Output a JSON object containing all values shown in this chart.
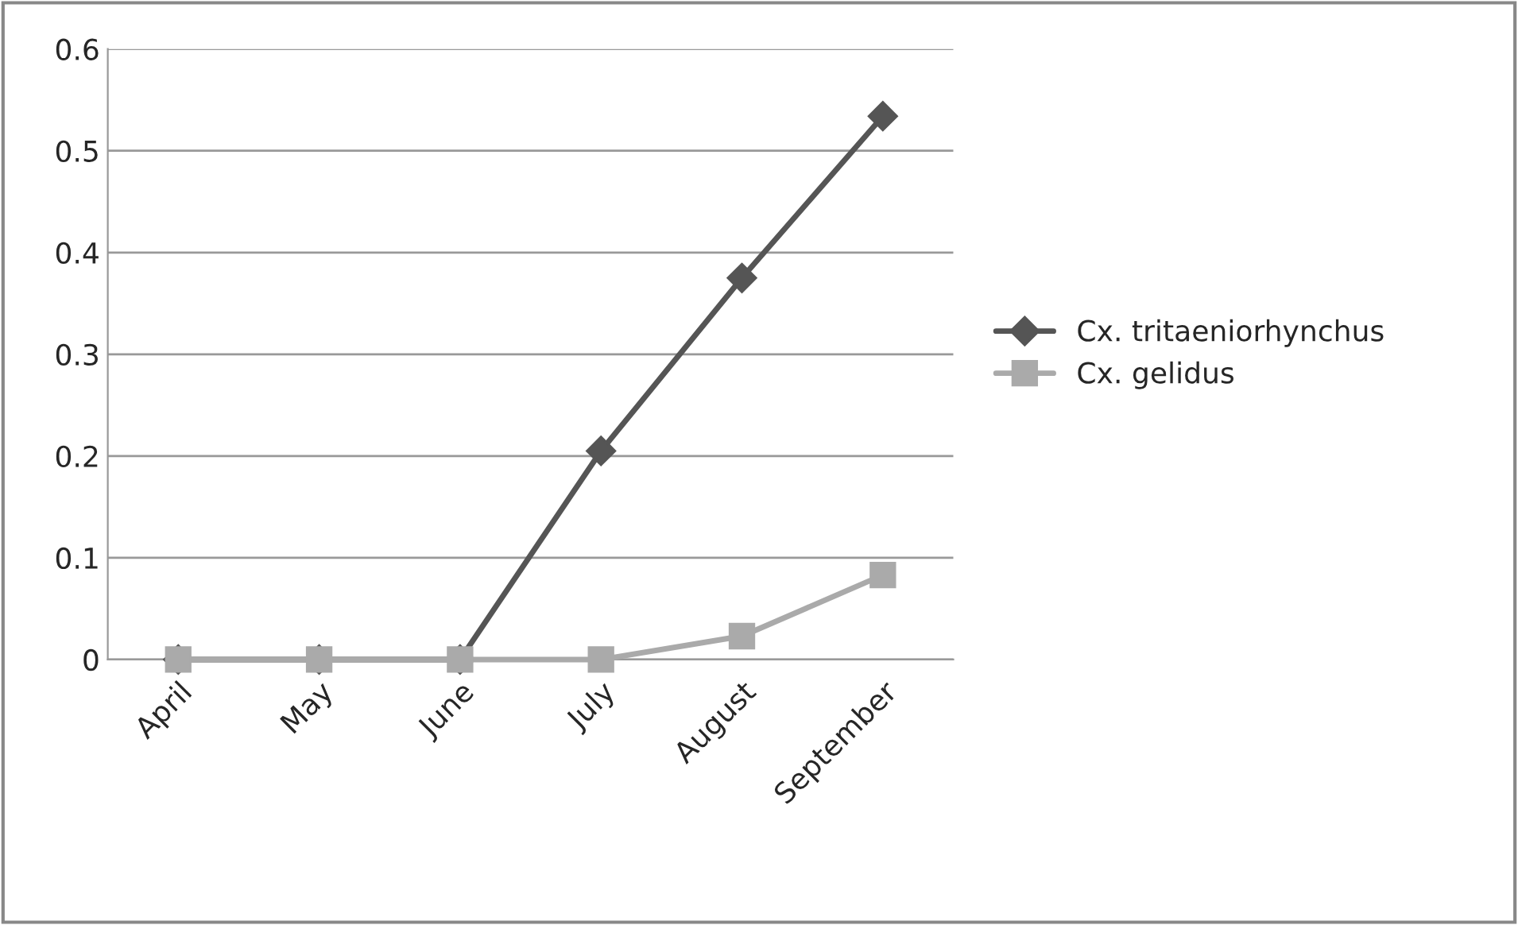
{
  "chart_data": {
    "type": "line",
    "categories": [
      "April",
      "May",
      "June",
      "July",
      "August",
      "September"
    ],
    "series": [
      {
        "name": "Cx. tritaeniorhynchus",
        "color": "#555555",
        "marker": "diamond",
        "values": [
          0,
          0,
          0,
          0.205,
          0.375,
          0.534
        ]
      },
      {
        "name": "Cx. gelidus",
        "color": "#aaaaaa",
        "marker": "square",
        "values": [
          0,
          0,
          0,
          0,
          0.023,
          0.083
        ]
      }
    ],
    "ylim": [
      0,
      0.6
    ],
    "yticks": [
      0,
      0.1,
      0.2,
      0.3,
      0.4,
      0.5,
      0.6
    ],
    "grid": "y",
    "legend": "right",
    "line_style": "solid"
  }
}
